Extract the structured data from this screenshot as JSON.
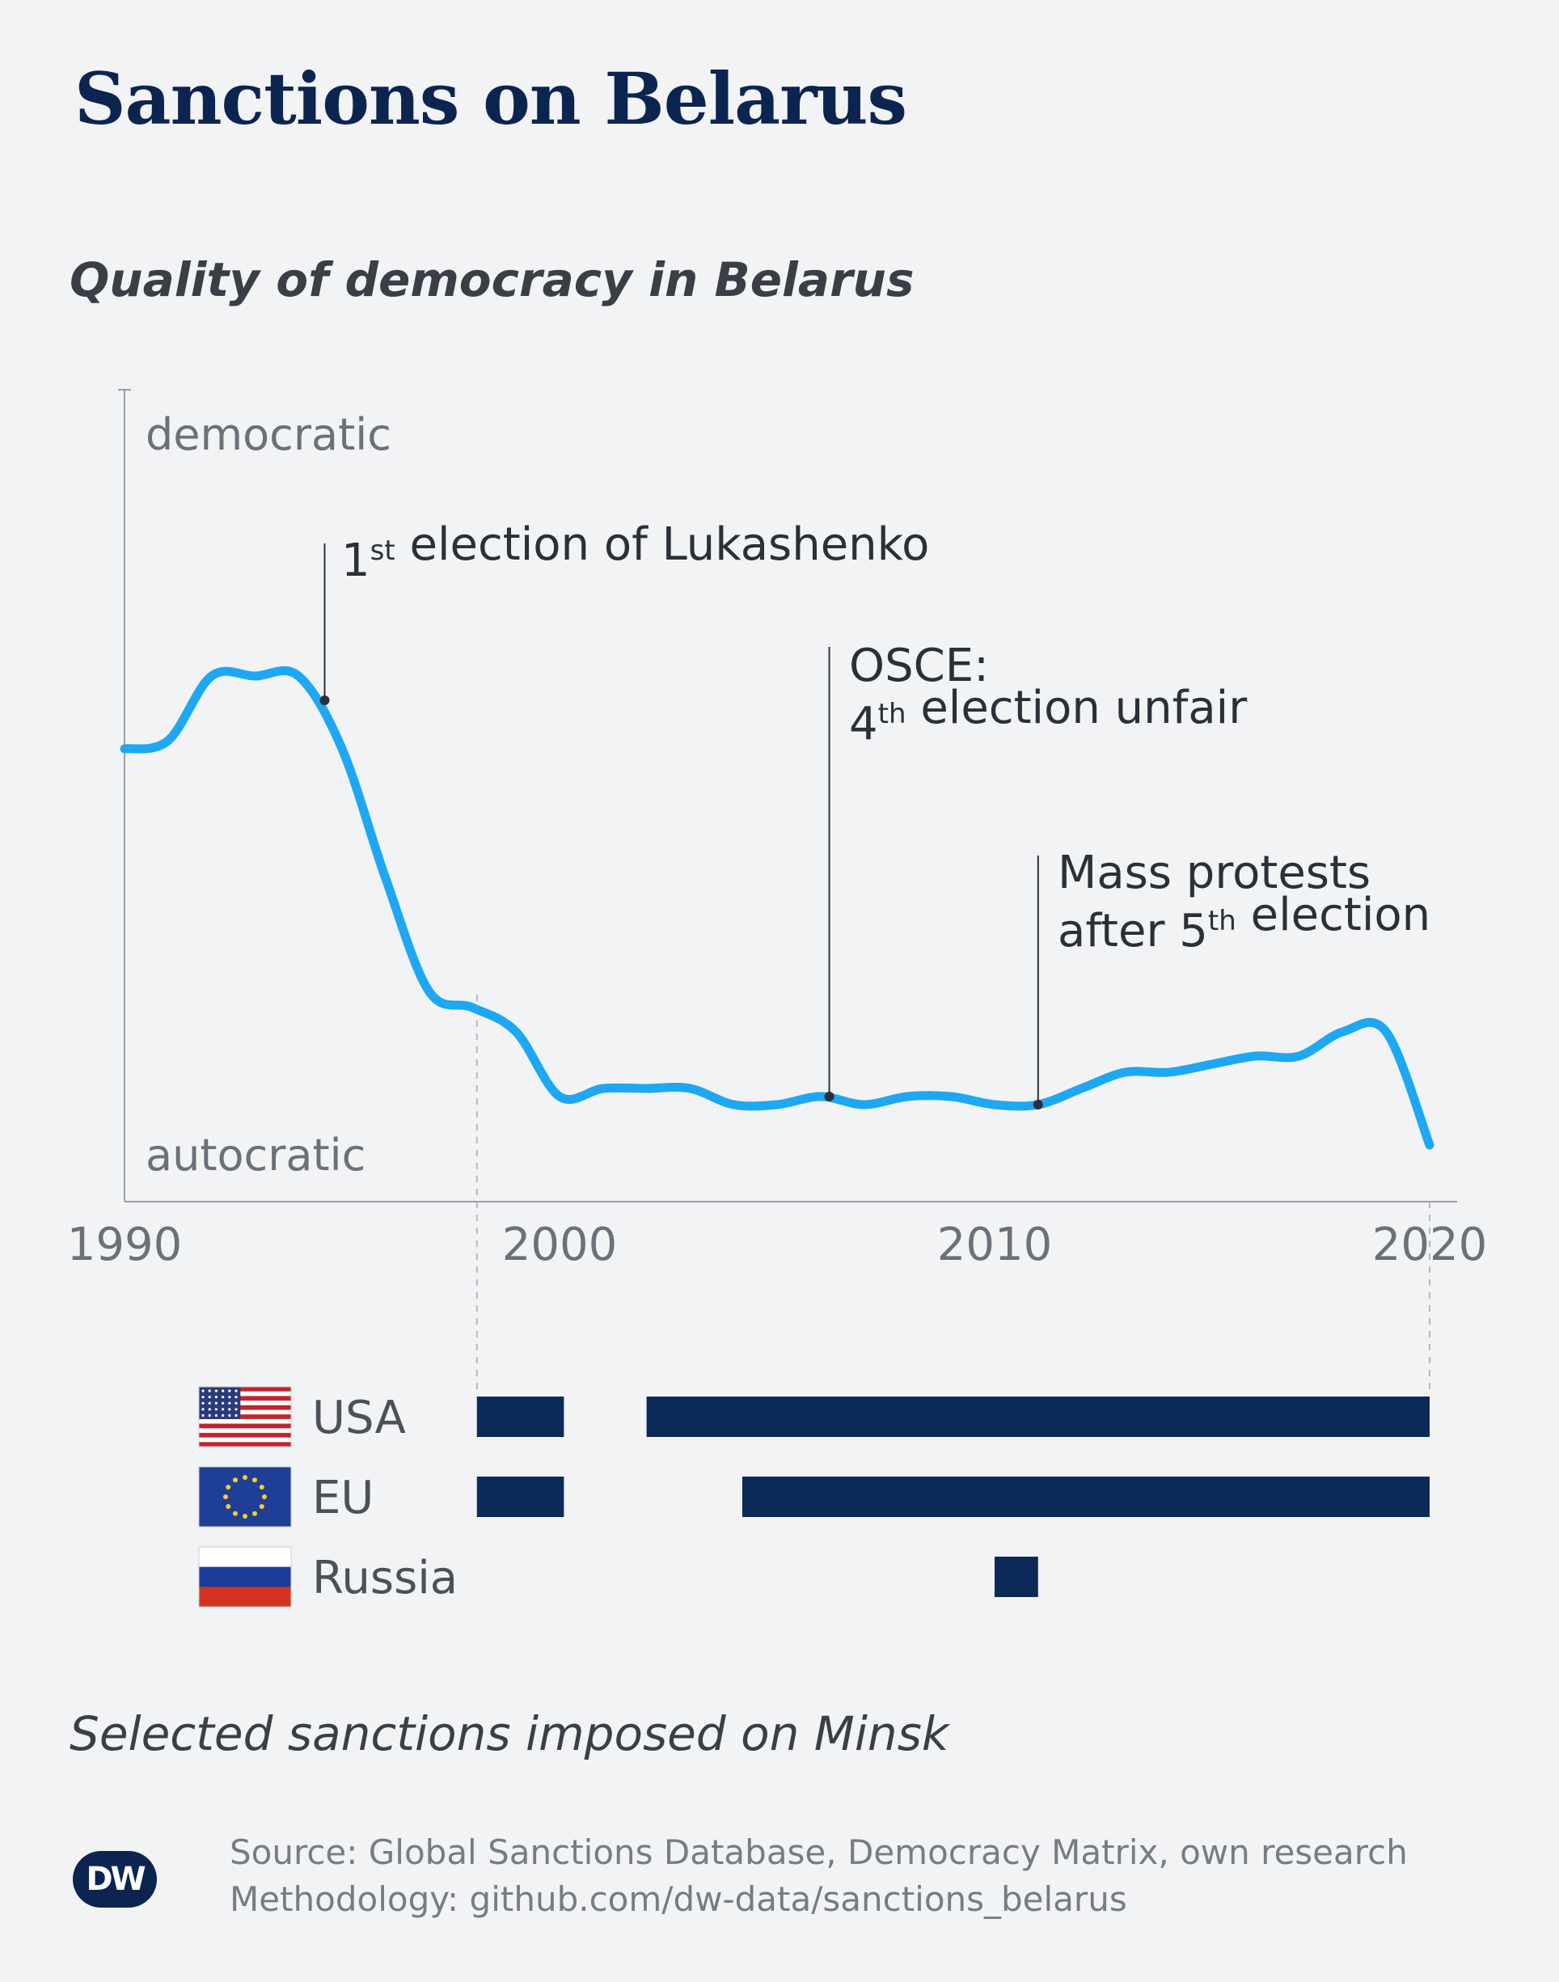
{
  "header": {
    "title": "Sanctions on Belarus",
    "subtitle": "Quality of democracy in Belarus"
  },
  "chart_data": [
    {
      "type": "line",
      "title": "Quality of democracy in Belarus",
      "ylabel_top": "democratic",
      "ylabel_bottom": "autocratic",
      "xlim": [
        1990,
        2020.6
      ],
      "ylim": [
        0,
        1
      ],
      "x_ticks": [
        "1990",
        "2000",
        "2010",
        "2020"
      ],
      "x_tick_values": [
        1990,
        2000,
        2010,
        2020
      ],
      "color": "#1ea7f2",
      "series": [
        {
          "x": [
            1990,
            1991,
            1992,
            1993,
            1994,
            1995,
            1996,
            1997,
            1998,
            1999,
            2000,
            2001,
            2002,
            2003,
            2004,
            2005,
            2006,
            2007,
            2008,
            2009,
            2010,
            2011,
            2012,
            2013,
            2014,
            2015,
            2016,
            2017,
            2018,
            2019,
            2020
          ],
          "values": [
            0.56,
            0.57,
            0.65,
            0.65,
            0.65,
            0.56,
            0.4,
            0.26,
            0.24,
            0.21,
            0.13,
            0.14,
            0.14,
            0.14,
            0.12,
            0.12,
            0.13,
            0.12,
            0.13,
            0.13,
            0.12,
            0.12,
            0.14,
            0.16,
            0.16,
            0.17,
            0.18,
            0.18,
            0.21,
            0.21,
            0.07
          ]
        }
      ],
      "annotations": [
        {
          "x": 1994.6,
          "y": 0.62,
          "text_parts": [
            [
              "1",
              ""
            ],
            [
              "st",
              "sup"
            ],
            [
              " election of Lukashenko",
              ""
            ]
          ],
          "lines": 1
        },
        {
          "x": 2006.2,
          "y": 0.13,
          "text_parts": [
            [
              "OSCE:",
              ""
            ]
          ],
          "text_parts_2": [
            [
              "4",
              ""
            ],
            [
              "th",
              "sup"
            ],
            [
              " election unfair",
              ""
            ]
          ],
          "lines": 2
        },
        {
          "x": 2011.0,
          "y": 0.12,
          "text_parts": [
            [
              "Mass protests",
              ""
            ]
          ],
          "text_parts_2": [
            [
              "after 5",
              ""
            ],
            [
              "th",
              "sup"
            ],
            [
              " election",
              ""
            ]
          ],
          "lines": 2
        }
      ]
    },
    {
      "type": "bar",
      "title": "Selected sanctions imposed on Minsk",
      "orientation": "horizontal-timeline",
      "bar_color": "#0c2a57",
      "series": [
        {
          "name": "USA",
          "flag": "us-flag",
          "intervals": [
            [
              1998.1,
              2000.1
            ],
            [
              2002.0,
              2020.0
            ]
          ]
        },
        {
          "name": "EU",
          "flag": "eu-flag",
          "intervals": [
            [
              1998.1,
              2000.1
            ],
            [
              2004.2,
              2020.0
            ]
          ]
        },
        {
          "name": "Russia",
          "flag": "russia-flag",
          "intervals": [
            [
              2010.0,
              2011.0
            ]
          ]
        }
      ]
    }
  ],
  "footer": {
    "sanctions_caption": "Selected sanctions imposed on Minsk",
    "source": "Source: Global Sanctions Database, Democracy Matrix, own research",
    "methodology": "Methodology: github.com/dw-data/sanctions_belarus",
    "logo": "DW"
  }
}
